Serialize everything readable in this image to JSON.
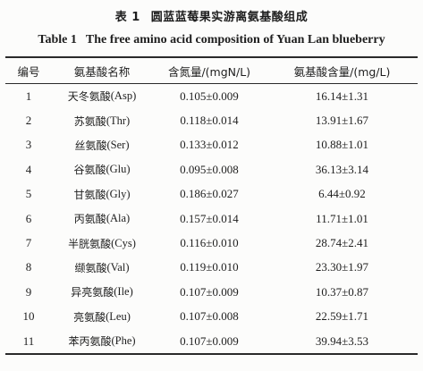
{
  "title": {
    "cn_number": "表 1",
    "cn_text": "圆蓝蓝莓果实游离氨基酸组成",
    "en_number": "Table 1",
    "en_text": "The free amino acid composition of Yuan Lan blueberry"
  },
  "table": {
    "headers": [
      "编号",
      "氨基酸名称",
      "含氮量/(mgN/L)",
      "氨基酸含量/(mg/L)"
    ],
    "rows": [
      {
        "no": "1",
        "name": "天冬氨酸",
        "abbr": "(Asp)",
        "nitrogen": "0.105±0.009",
        "content": "16.14±1.31"
      },
      {
        "no": "2",
        "name": "苏氨酸",
        "abbr": "(Thr)",
        "nitrogen": "0.118±0.014",
        "content": "13.91±1.67"
      },
      {
        "no": "3",
        "name": "丝氨酸",
        "abbr": "(Ser)",
        "nitrogen": "0.133±0.012",
        "content": "10.88±1.01"
      },
      {
        "no": "4",
        "name": "谷氨酸",
        "abbr": "(Glu)",
        "nitrogen": "0.095±0.008",
        "content": "36.13±3.14"
      },
      {
        "no": "5",
        "name": "甘氨酸",
        "abbr": "(Gly)",
        "nitrogen": "0.186±0.027",
        "content": "6.44±0.92"
      },
      {
        "no": "6",
        "name": "丙氨酸",
        "abbr": "(Ala)",
        "nitrogen": "0.157±0.014",
        "content": "11.71±1.01"
      },
      {
        "no": "7",
        "name": "半胱氨酸",
        "abbr": "(Cys)",
        "nitrogen": "0.116±0.010",
        "content": "28.74±2.41"
      },
      {
        "no": "8",
        "name": "缬氨酸",
        "abbr": "(Val)",
        "nitrogen": "0.119±0.010",
        "content": "23.30±1.97"
      },
      {
        "no": "9",
        "name": "异亮氨酸",
        "abbr": "(Ile)",
        "nitrogen": "0.107±0.009",
        "content": "10.37±0.87"
      },
      {
        "no": "10",
        "name": "亮氨酸",
        "abbr": "(Leu)",
        "nitrogen": "0.107±0.008",
        "content": "22.59±1.71"
      },
      {
        "no": "11",
        "name": "苯丙氨酸",
        "abbr": "(Phe)",
        "nitrogen": "0.107±0.009",
        "content": "39.94±3.53"
      }
    ]
  }
}
